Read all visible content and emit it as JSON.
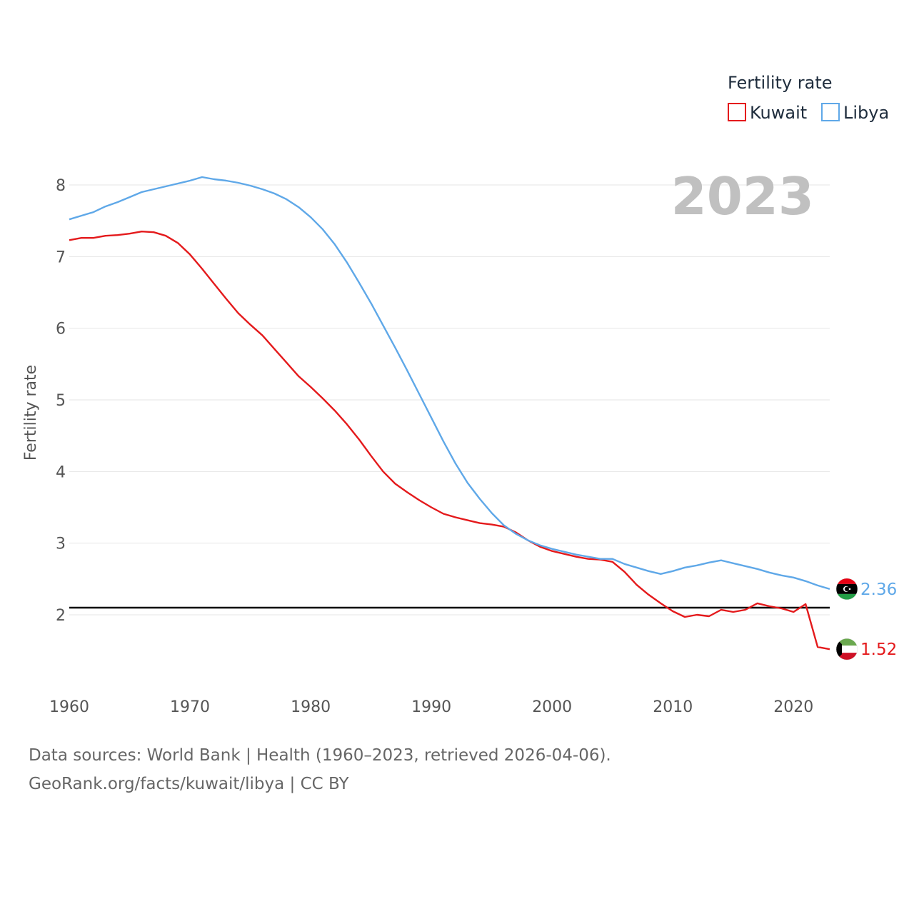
{
  "chart_data": {
    "type": "line",
    "title": "",
    "year_display": "2023",
    "xlabel": "",
    "ylabel": "Fertility rate",
    "xlim": [
      1960,
      2023
    ],
    "ylim": [
      1.0,
      8.5
    ],
    "x_ticks": [
      1960,
      1970,
      1980,
      1990,
      2000,
      2010,
      2020
    ],
    "x_tick_labels": [
      "1960",
      "1970",
      "1980",
      "1990",
      "2000",
      "2010",
      "2020"
    ],
    "y_ticks": [
      2,
      3,
      4,
      5,
      6,
      7,
      8
    ],
    "y_tick_labels": [
      "2",
      "3",
      "4",
      "5",
      "6",
      "7",
      "8"
    ],
    "grid": true,
    "legend": {
      "title": "Fertility rate",
      "position": "top-right",
      "entries": [
        "Kuwait",
        "Libya"
      ]
    },
    "reference_line": {
      "y": 2.1,
      "color": "#000000"
    },
    "x": [
      1960,
      1961,
      1962,
      1963,
      1964,
      1965,
      1966,
      1967,
      1968,
      1969,
      1970,
      1971,
      1972,
      1973,
      1974,
      1975,
      1976,
      1977,
      1978,
      1979,
      1980,
      1981,
      1982,
      1983,
      1984,
      1985,
      1986,
      1987,
      1988,
      1989,
      1990,
      1991,
      1992,
      1993,
      1994,
      1995,
      1996,
      1997,
      1998,
      1999,
      2000,
      2001,
      2002,
      2003,
      2004,
      2005,
      2006,
      2007,
      2008,
      2009,
      2010,
      2011,
      2012,
      2013,
      2014,
      2015,
      2016,
      2017,
      2018,
      2019,
      2020,
      2021,
      2022,
      2023
    ],
    "series": [
      {
        "name": "Kuwait",
        "color": "#e41a1c",
        "end_label": "1.52",
        "values": [
          7.23,
          7.26,
          7.26,
          7.29,
          7.3,
          7.32,
          7.35,
          7.34,
          7.29,
          7.19,
          7.03,
          6.83,
          6.62,
          6.41,
          6.21,
          6.05,
          5.9,
          5.71,
          5.52,
          5.33,
          5.18,
          5.02,
          4.85,
          4.66,
          4.45,
          4.22,
          4.0,
          3.83,
          3.71,
          3.6,
          3.5,
          3.41,
          3.36,
          3.32,
          3.28,
          3.26,
          3.23,
          3.15,
          3.04,
          2.95,
          2.89,
          2.85,
          2.81,
          2.78,
          2.77,
          2.74,
          2.6,
          2.42,
          2.28,
          2.16,
          2.05,
          1.97,
          2.0,
          1.98,
          2.07,
          2.04,
          2.07,
          2.16,
          2.12,
          2.09,
          2.04,
          2.15,
          1.55,
          1.52
        ]
      },
      {
        "name": "Libya",
        "color": "#5fa8e8",
        "end_label": "2.36",
        "values": [
          7.52,
          7.57,
          7.62,
          7.7,
          7.76,
          7.83,
          7.9,
          7.94,
          7.98,
          8.02,
          8.06,
          8.11,
          8.08,
          8.06,
          8.03,
          7.99,
          7.94,
          7.88,
          7.8,
          7.69,
          7.55,
          7.38,
          7.17,
          6.92,
          6.64,
          6.35,
          6.04,
          5.73,
          5.41,
          5.08,
          4.75,
          4.42,
          4.11,
          3.84,
          3.62,
          3.42,
          3.25,
          3.13,
          3.04,
          2.97,
          2.92,
          2.88,
          2.84,
          2.81,
          2.78,
          2.78,
          2.71,
          2.66,
          2.61,
          2.57,
          2.61,
          2.66,
          2.69,
          2.73,
          2.76,
          2.72,
          2.68,
          2.64,
          2.59,
          2.55,
          2.52,
          2.47,
          2.41,
          2.36
        ]
      }
    ]
  },
  "footer": {
    "source_line": "Data sources: World Bank | Health (1960–2023, retrieved 2026-04-06).",
    "site_line": "GeoRank.org/facts/kuwait/libya | CC BY"
  }
}
